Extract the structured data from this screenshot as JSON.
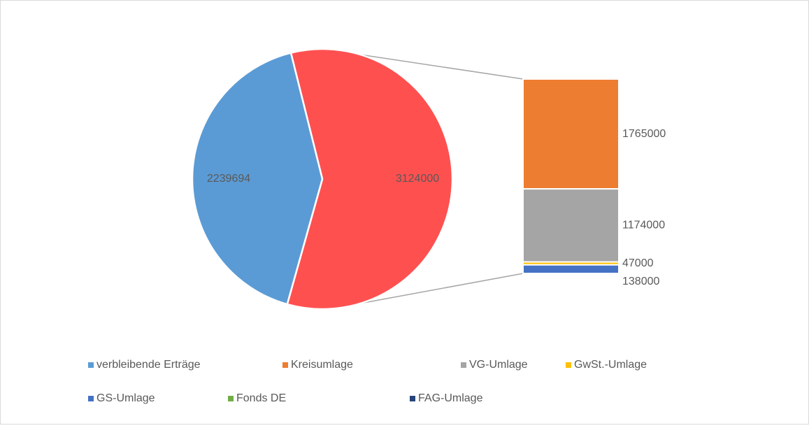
{
  "chart_data": {
    "type": "pie-of-bar",
    "categories": [
      "verbleibende Erträge",
      "Kreisumlage",
      "VG-Umlage",
      "GwSt.-Umlage",
      "GS-Umlage",
      "Fonds DE",
      "FAG-Umlage"
    ],
    "values": [
      2239694,
      1765000,
      1174000,
      47000,
      138000,
      null,
      null
    ],
    "colors": [
      "#5b9bd5",
      "#ed7d31",
      "#a5a5a5",
      "#ffc000",
      "#4472c4",
      "#70ad47",
      "#264478"
    ],
    "other_value": 3124000,
    "other_color": "#ff5050"
  }
}
